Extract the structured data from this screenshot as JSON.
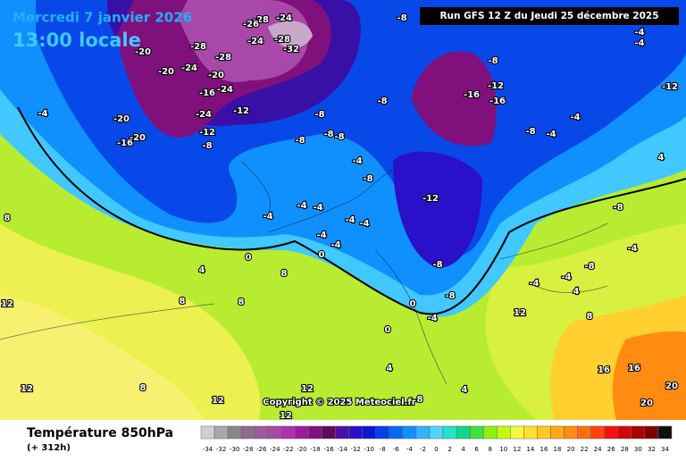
{
  "header": {
    "date": "Mercredi 7 janvier 2026",
    "time": "13:00 locale",
    "run": "Run GFS 12 Z du Jeudi 25 décembre 2025",
    "copyright": "Copyright © 2025 Meteociel.fr"
  },
  "footer": {
    "title": "Température 850hPa",
    "lead": "(+ 312h)"
  },
  "scale": {
    "values": [
      -34,
      -32,
      -30,
      -28,
      -26,
      -24,
      -22,
      -20,
      -18,
      -16,
      -14,
      -12,
      -10,
      -8,
      -6,
      -4,
      -2,
      0,
      2,
      4,
      6,
      8,
      10,
      12,
      14,
      16,
      18,
      20,
      22,
      24,
      26,
      28,
      30,
      32,
      34
    ],
    "colors": [
      "#d0d0d0",
      "#a8a8a8",
      "#888888",
      "#8c6c8c",
      "#9c5c9c",
      "#a848a8",
      "#b030b0",
      "#a018a0",
      "#80107c",
      "#5e0a5e",
      "#4a10a8",
      "#2a10c8",
      "#0818d8",
      "#0840e8",
      "#0868f0",
      "#1090ff",
      "#30b4ff",
      "#50d4ff",
      "#20e4c8",
      "#10d888",
      "#40e040",
      "#8cf010",
      "#c4fa10",
      "#f8f840",
      "#ffe030",
      "#ffc820",
      "#ffa818",
      "#ff8c10",
      "#ff6c10",
      "#ff4010",
      "#f41010",
      "#d00808",
      "#a80404",
      "#800000",
      "#101010"
    ]
  },
  "map": {
    "labels": [
      -20,
      -20,
      -24,
      -28,
      -24,
      -28,
      -32,
      -24,
      -28,
      -26,
      -28,
      -20,
      -16,
      -24,
      -12,
      -24,
      -20,
      -20,
      -16,
      -12,
      -8,
      -8,
      -8,
      -8,
      -8,
      -8,
      -8,
      -8,
      -12,
      -16,
      -16,
      -8,
      -4,
      -4,
      -4,
      -4,
      -4,
      -12,
      -8,
      -4,
      -4,
      -4,
      -4,
      -4,
      -4,
      -4,
      0,
      0,
      -8,
      -8,
      0,
      -4,
      4,
      8,
      8,
      12,
      12,
      8,
      12,
      12,
      12,
      8,
      8,
      0,
      4,
      4,
      8,
      12,
      16,
      20,
      20,
      16,
      4,
      -8,
      -4,
      -4,
      -8,
      -4,
      8,
      4,
      -12,
      -4
    ]
  }
}
